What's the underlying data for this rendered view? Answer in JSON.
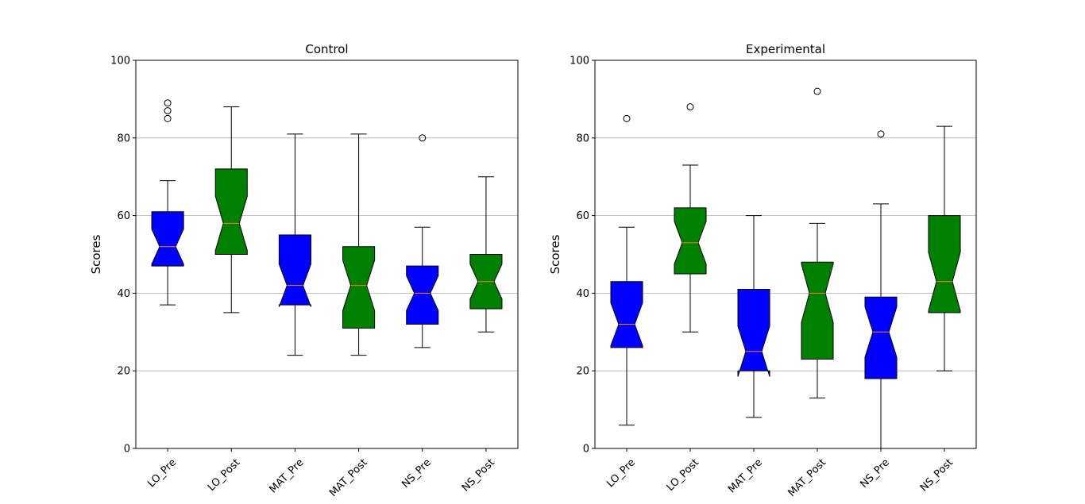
{
  "chart_data": [
    {
      "type": "boxplot",
      "title": "Control",
      "ylabel": "Scores",
      "ylim": [
        0,
        100
      ],
      "yticks": [
        0,
        20,
        40,
        60,
        80,
        100
      ],
      "grid": "y",
      "notched": true,
      "categories": [
        "LO_Pre",
        "LO_Post",
        "MAT_Pre",
        "MAT_Post",
        "NS_Pre",
        "NS_Post"
      ],
      "colors": [
        "#0000ff",
        "#008000",
        "#0000ff",
        "#008000",
        "#0000ff",
        "#008000"
      ],
      "median_color": "#ff7f0e",
      "boxes": [
        {
          "whislo": 37,
          "q1": 47,
          "med": 52,
          "q3": 61,
          "whishi": 69,
          "notch_lo": 47.5,
          "notch_hi": 56.5,
          "fliers": [
            85,
            87,
            89
          ]
        },
        {
          "whislo": 35,
          "q1": 50,
          "med": 58,
          "q3": 72,
          "whishi": 88,
          "notch_lo": 51,
          "notch_hi": 65,
          "fliers": []
        },
        {
          "whislo": 24,
          "q1": 37,
          "med": 42,
          "q3": 55,
          "whishi": 81,
          "notch_lo": 36.5,
          "notch_hi": 47.5,
          "fliers": []
        },
        {
          "whislo": 24,
          "q1": 31,
          "med": 42,
          "q3": 52,
          "whishi": 81,
          "notch_lo": 35.5,
          "notch_hi": 48.5,
          "fliers": []
        },
        {
          "whislo": 26,
          "q1": 32,
          "med": 40,
          "q3": 47,
          "whishi": 57,
          "notch_lo": 35.5,
          "notch_hi": 44.5,
          "fliers": [
            80
          ]
        },
        {
          "whislo": 30,
          "q1": 36,
          "med": 43,
          "q3": 50,
          "whishi": 70,
          "notch_lo": 38.5,
          "notch_hi": 47.5,
          "fliers": []
        }
      ]
    },
    {
      "type": "boxplot",
      "title": "Experimental",
      "ylabel": "Scores",
      "ylim": [
        0,
        100
      ],
      "yticks": [
        0,
        20,
        40,
        60,
        80,
        100
      ],
      "grid": "y",
      "notched": true,
      "categories": [
        "LO_Pre",
        "LO_Post",
        "MAT_Pre",
        "MAT_Post",
        "NS_Pre",
        "NS_Post"
      ],
      "colors": [
        "#0000ff",
        "#008000",
        "#0000ff",
        "#008000",
        "#0000ff",
        "#008000"
      ],
      "median_color": "#ff7f0e",
      "boxes": [
        {
          "whislo": 6,
          "q1": 26,
          "med": 32,
          "q3": 43,
          "whishi": 57,
          "notch_lo": 26.5,
          "notch_hi": 37.5,
          "fliers": [
            85
          ]
        },
        {
          "whislo": 30,
          "q1": 45,
          "med": 53,
          "q3": 62,
          "whishi": 73,
          "notch_lo": 47.5,
          "notch_hi": 58.5,
          "fliers": [
            88
          ]
        },
        {
          "whislo": 8,
          "q1": 20,
          "med": 25,
          "q3": 41,
          "whishi": 60,
          "notch_lo": 18.5,
          "notch_hi": 31.5,
          "fliers": []
        },
        {
          "whislo": 13,
          "q1": 23,
          "med": 40,
          "q3": 48,
          "whishi": 58,
          "notch_lo": 32.5,
          "notch_hi": 47.5,
          "fliers": [
            92
          ]
        },
        {
          "whislo": 0,
          "q1": 18,
          "med": 30,
          "q3": 39,
          "whishi": 63,
          "notch_lo": 23.5,
          "notch_hi": 36.5,
          "fliers": [
            81
          ]
        },
        {
          "whislo": 20,
          "q1": 35,
          "med": 43,
          "q3": 60,
          "whishi": 83,
          "notch_lo": 35.5,
          "notch_hi": 50.5,
          "fliers": []
        }
      ]
    }
  ]
}
